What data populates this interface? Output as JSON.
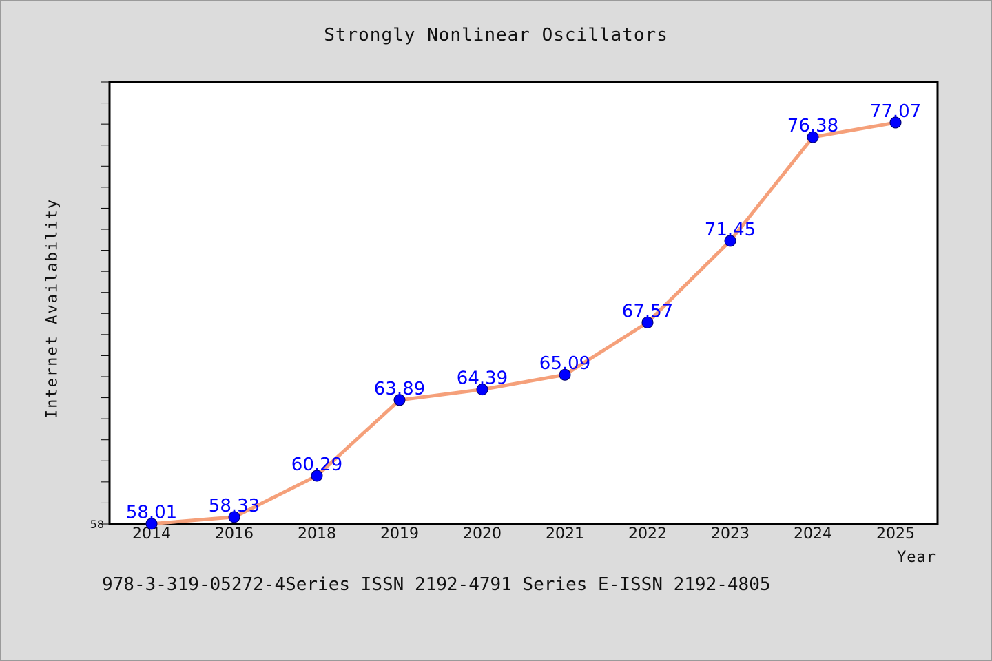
{
  "colors": {
    "background": "#dcdcdc",
    "plot_background": "#ffffff",
    "line": "#f5a07a",
    "marker": "#0000ff",
    "data_label": "#0000ff"
  },
  "footer": {
    "text": "978-3-319-05272-4Series ISSN 2192-4791 Series E-ISSN 2192-4805"
  },
  "chart_data": {
    "type": "line",
    "title": "Strongly Nonlinear Oscillators",
    "xlabel": "Year",
    "ylabel": "Internet Availability",
    "categories": [
      "2014",
      "2016",
      "2018",
      "2019",
      "2020",
      "2021",
      "2022",
      "2023",
      "2024",
      "2025"
    ],
    "series": [
      {
        "values": [
          58.01,
          58.33,
          60.29,
          63.89,
          64.39,
          65.09,
          67.57,
          71.45,
          76.38,
          77.07
        ],
        "labels": [
          "58.01",
          "58.33",
          "60.29",
          "63.89",
          "64.39",
          "65.09",
          "67.57",
          "71.45",
          "76.38",
          "77.07"
        ]
      }
    ],
    "ylim": [
      58,
      79
    ],
    "yticks_labeled": [
      "58"
    ],
    "grid": false,
    "legend": "none"
  }
}
